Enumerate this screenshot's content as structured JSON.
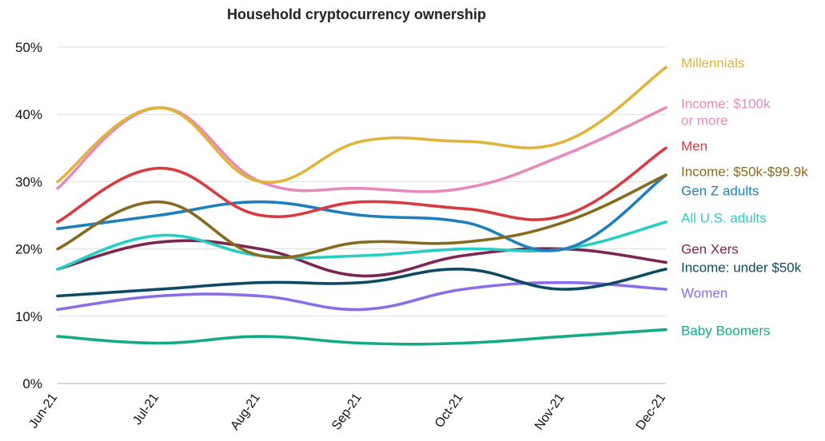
{
  "chart_data": {
    "type": "line",
    "title": "Household cryptocurrency ownership",
    "xlabel": "",
    "ylabel": "",
    "categories": [
      "Jun-21",
      "Jul-21",
      "Aug-21",
      "Sep-21",
      "Oct-21",
      "Nov-21",
      "Dec-21"
    ],
    "ylim": [
      0,
      50
    ],
    "yticks": [
      0,
      10,
      20,
      30,
      40,
      50
    ],
    "ytick_labels": [
      "0%",
      "10%",
      "20%",
      "30%",
      "40%",
      "50%"
    ],
    "grid": true,
    "legend": "right (direct labels)",
    "series": [
      {
        "name": "Millennials",
        "label_lines": [
          "Millennials"
        ],
        "color": "#e0b43a",
        "values": [
          30,
          41,
          30,
          36,
          36,
          36,
          47
        ]
      },
      {
        "name": "Income: $100k or more",
        "label_lines": [
          "Income: $100k",
          "or more"
        ],
        "color": "#e889be",
        "values": [
          29,
          41,
          30,
          29,
          29,
          34,
          41
        ]
      },
      {
        "name": "Men",
        "label_lines": [
          "Men"
        ],
        "color": "#d93a3f",
        "values": [
          24,
          32,
          25,
          27,
          26,
          25,
          35
        ]
      },
      {
        "name": "Income: $50k-$99.9k",
        "label_lines": [
          "Income: $50k-$99.9k"
        ],
        "color": "#866b1f",
        "values": [
          20,
          27,
          19,
          21,
          21,
          24,
          31
        ]
      },
      {
        "name": "Gen Z adults",
        "label_lines": [
          "Gen Z adults"
        ],
        "color": "#1f7fbd",
        "values": [
          23,
          25,
          27,
          25,
          24,
          20,
          31
        ]
      },
      {
        "name": "All U.S. adults",
        "label_lines": [
          "All U.S. adults"
        ],
        "color": "#26cfc3",
        "values": [
          17,
          22,
          19,
          19,
          20,
          20,
          24
        ]
      },
      {
        "name": "Gen Xers",
        "label_lines": [
          "Gen Xers"
        ],
        "color": "#7c2553",
        "values": [
          17,
          21,
          20,
          16,
          19,
          20,
          18
        ]
      },
      {
        "name": "Income: under $50k",
        "label_lines": [
          "Income: under $50k"
        ],
        "color": "#0d4a63",
        "values": [
          13,
          14,
          15,
          15,
          17,
          14,
          17
        ]
      },
      {
        "name": "Women",
        "label_lines": [
          "Women"
        ],
        "color": "#8a6de9",
        "values": [
          11,
          13,
          13,
          11,
          14,
          15,
          14
        ]
      },
      {
        "name": "Baby Boomers",
        "label_lines": [
          "Baby Boomers"
        ],
        "color": "#12ab86",
        "values": [
          7,
          6,
          7,
          6,
          6,
          7,
          8
        ]
      }
    ]
  }
}
